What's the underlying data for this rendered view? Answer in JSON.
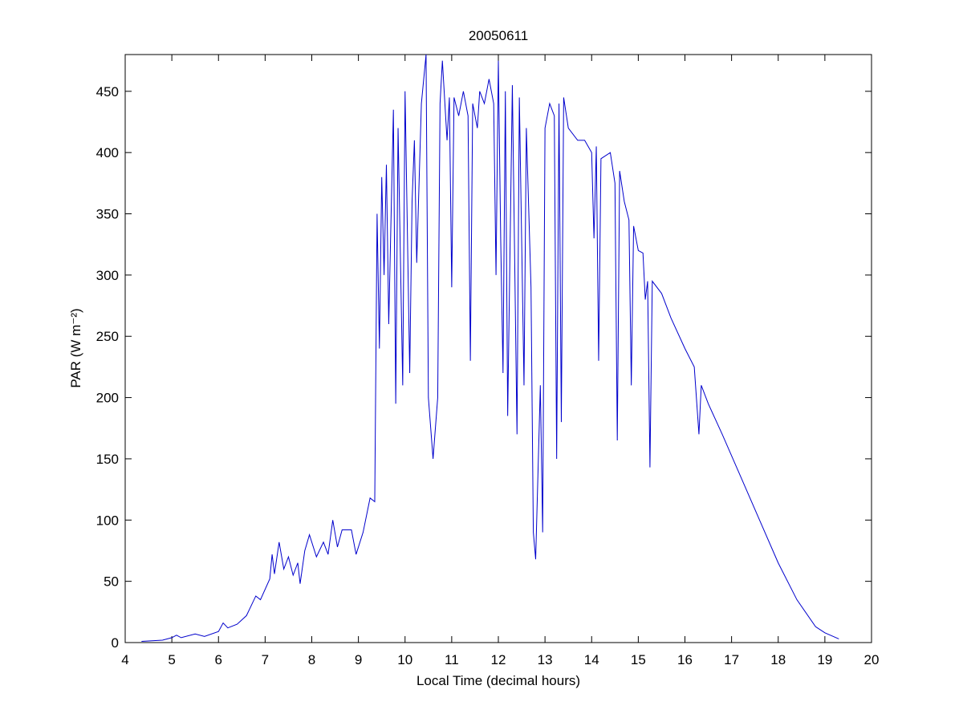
{
  "chart_data": {
    "type": "line",
    "title": "20050611",
    "xlabel": "Local Time (decimal hours)",
    "ylabel": "PAR (W m⁻²)",
    "xlim": [
      4,
      20
    ],
    "ylim": [
      0,
      480
    ],
    "xticks": [
      4,
      5,
      6,
      7,
      8,
      9,
      10,
      11,
      12,
      13,
      14,
      15,
      16,
      17,
      18,
      19,
      20
    ],
    "yticks": [
      0,
      50,
      100,
      150,
      200,
      250,
      300,
      350,
      400,
      450
    ],
    "series": [
      {
        "color": "#0000cc",
        "x": [
          4.35,
          4.8,
          5.0,
          5.1,
          5.2,
          5.5,
          5.7,
          6.0,
          6.1,
          6.2,
          6.4,
          6.6,
          6.8,
          6.9,
          7.1,
          7.15,
          7.2,
          7.3,
          7.4,
          7.5,
          7.6,
          7.7,
          7.75,
          7.85,
          7.95,
          8.1,
          8.25,
          8.35,
          8.45,
          8.55,
          8.65,
          8.85,
          8.95,
          9.1,
          9.25,
          9.35,
          9.4,
          9.45,
          9.5,
          9.55,
          9.6,
          9.65,
          9.75,
          9.8,
          9.85,
          9.95,
          10.0,
          10.1,
          10.15,
          10.2,
          10.25,
          10.35,
          10.45,
          10.5,
          10.6,
          10.7,
          10.75,
          10.8,
          10.9,
          10.95,
          11.0,
          11.05,
          11.15,
          11.25,
          11.35,
          11.4,
          11.45,
          11.55,
          11.6,
          11.7,
          11.8,
          11.9,
          11.95,
          12.0,
          12.05,
          12.1,
          12.15,
          12.2,
          12.3,
          12.4,
          12.45,
          12.55,
          12.6,
          12.7,
          12.75,
          12.8,
          12.9,
          12.95,
          13.0,
          13.1,
          13.2,
          13.25,
          13.3,
          13.35,
          13.4,
          13.5,
          13.7,
          13.85,
          14.0,
          14.05,
          14.1,
          14.15,
          14.2,
          14.4,
          14.5,
          14.55,
          14.6,
          14.7,
          14.8,
          14.85,
          14.9,
          15.0,
          15.1,
          15.15,
          15.2,
          15.25,
          15.3,
          15.5,
          15.7,
          16.0,
          16.2,
          16.3,
          16.35,
          16.5,
          16.8,
          17.2,
          17.6,
          18.0,
          18.4,
          18.8,
          19.0,
          19.3
        ],
        "values": [
          1,
          2,
          4,
          6,
          4,
          7,
          5,
          9,
          16,
          12,
          15,
          22,
          38,
          35,
          52,
          72,
          56,
          82,
          60,
          70,
          55,
          65,
          48,
          75,
          88,
          70,
          82,
          72,
          100,
          78,
          92,
          92,
          72,
          90,
          118,
          115,
          350,
          240,
          380,
          300,
          390,
          260,
          435,
          195,
          420,
          210,
          450,
          220,
          360,
          410,
          310,
          440,
          480,
          200,
          150,
          200,
          440,
          475,
          410,
          445,
          290,
          445,
          430,
          450,
          430,
          230,
          440,
          420,
          450,
          440,
          460,
          440,
          300,
          475,
          330,
          220,
          450,
          185,
          455,
          170,
          445,
          210,
          420,
          290,
          90,
          68,
          210,
          90,
          420,
          440,
          430,
          150,
          440,
          180,
          445,
          420,
          410,
          410,
          400,
          330,
          405,
          230,
          395,
          400,
          375,
          165,
          385,
          360,
          345,
          210,
          340,
          320,
          318,
          280,
          295,
          143,
          295,
          285,
          265,
          240,
          225,
          170,
          210,
          195,
          170,
          135,
          100,
          65,
          35,
          13,
          8,
          3
        ]
      }
    ]
  }
}
